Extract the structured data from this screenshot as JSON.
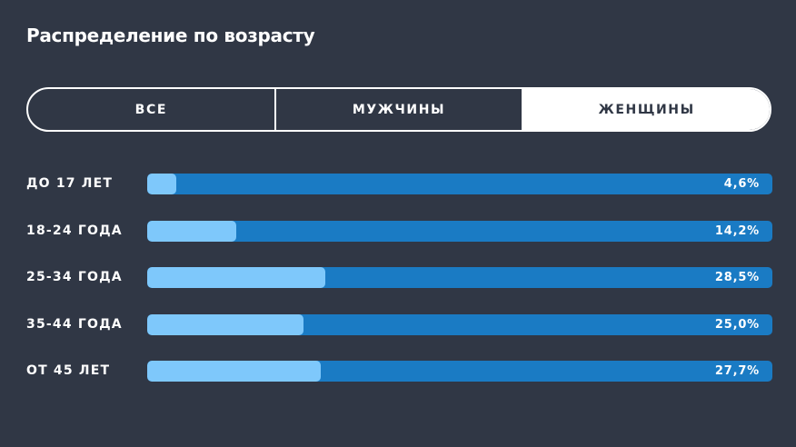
{
  "title": "Распределение по возрасту",
  "tabs": [
    {
      "label": "ВСЕ",
      "active": false
    },
    {
      "label": "МУЖЧИНЫ",
      "active": false
    },
    {
      "label": "ЖЕНЩИНЫ",
      "active": true
    }
  ],
  "colors": {
    "background": "#303745",
    "bar_track": "#1a7bc4",
    "bar_fill": "#7ec8fb",
    "text": "#ffffff"
  },
  "rows": [
    {
      "label": "ДО 17 ЛЕТ",
      "value": "4,6%",
      "fill_percent": 4.6
    },
    {
      "label": "18-24 ГОДА",
      "value": "14,2%",
      "fill_percent": 14.2
    },
    {
      "label": "25-34 ГОДА",
      "value": "28,5%",
      "fill_percent": 28.5
    },
    {
      "label": "35-44 ГОДА",
      "value": "25,0%",
      "fill_percent": 25.0
    },
    {
      "label": "ОТ 45 ЛЕТ",
      "value": "27,7%",
      "fill_percent": 27.7
    }
  ]
}
